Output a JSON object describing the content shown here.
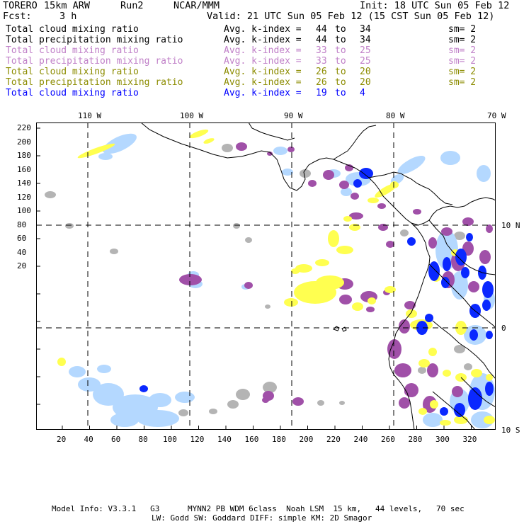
{
  "header": {
    "model": "TORERO",
    "resolution": "15km ARW",
    "run": "Run2",
    "org": "NCAR/MMM",
    "init": "Init: 18 UTC Sun 05 Feb 12",
    "fcst_label": "Fcst:",
    "fcst_value": "3 h",
    "valid": "Valid: 21 UTC Sun 05 Feb 12 (15 CST Sun 05 Feb 12)"
  },
  "legend": [
    {
      "field": "Total cloud mixing ratio",
      "index": "Avg. k-index =",
      "from": "44",
      "to_word": "to",
      "to": "34",
      "sm": "sm= 2",
      "color": "#000000"
    },
    {
      "field": "Total precipitation mixing ratio",
      "index": "Avg. k-index =",
      "from": "44",
      "to_word": "to",
      "to": "34",
      "sm": "sm= 2",
      "color": "#000000"
    },
    {
      "field": "Total cloud mixing ratio",
      "index": "Avg. k-index =",
      "from": "33",
      "to_word": "to",
      "to": "25",
      "sm": "sm= 2",
      "color": "#c080c8"
    },
    {
      "field": "Total precipitation mixing ratio",
      "index": "Avg. k-index =",
      "from": "33",
      "to_word": "to",
      "to": "25",
      "sm": "sm= 2",
      "color": "#c080c8"
    },
    {
      "field": "Total cloud mixing ratio",
      "index": "Avg. k-index =",
      "from": "26",
      "to_word": "to",
      "to": "20",
      "sm": "sm= 2",
      "color": "#8c8c00"
    },
    {
      "field": "Total precipitation mixing ratio",
      "index": "Avg. k-index =",
      "from": "26",
      "to_word": "to",
      "to": "20",
      "sm": "sm= 2",
      "color": "#8c8c00"
    },
    {
      "field": "Total cloud mixing ratio",
      "index": "Avg. k-index =",
      "from": "19",
      "to_word": "to",
      "to": "4",
      "sm": "",
      "color": "#0000ff"
    }
  ],
  "axes": {
    "top_labels": [
      "110 W",
      "100 W",
      "90 W",
      "80 W",
      "70 W"
    ],
    "right_labels": [
      "10 N",
      "0",
      "10 S"
    ],
    "left_ticks": [
      "220",
      "200",
      "180",
      "160",
      "140",
      "120",
      "100",
      "80",
      "60",
      "40",
      "20"
    ],
    "bottom_ticks": [
      "20",
      "40",
      "60",
      "80",
      "100",
      "120",
      "140",
      "160",
      "180",
      "200",
      "220",
      "240",
      "260",
      "280",
      "300",
      "320"
    ]
  },
  "colors": {
    "gray": "#b4b4b4",
    "purple": "#a050a8",
    "yellow": "#ffff50",
    "lightblue": "#b4d8ff",
    "blue": "#0a28ff",
    "paleblue": "#d4eaff"
  },
  "footer": {
    "line1": "Model Info: V3.3.1   G3      MYNN2 PB WDM 6class  Noah LSM  15 km,   44 levels,   70 sec",
    "line2": "LW: Godd SW: Goddard DIFF: simple KM: 2D Smagor"
  }
}
